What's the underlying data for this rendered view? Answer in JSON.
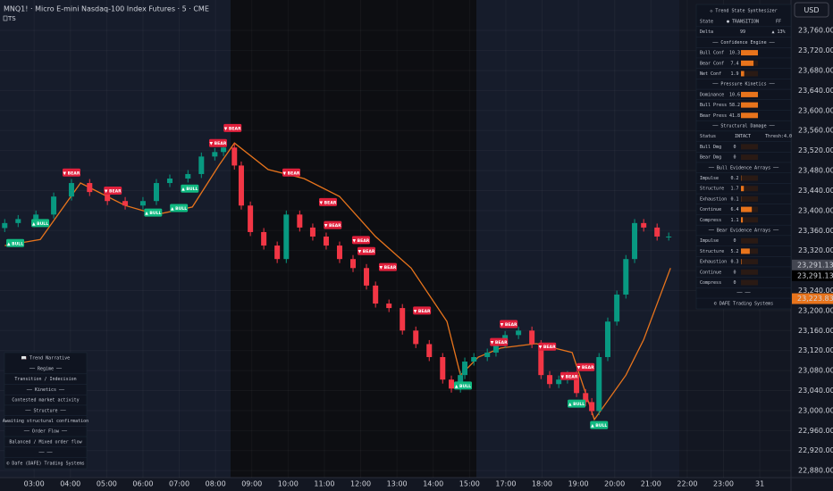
{
  "chart_data": {
    "type": "candlestick",
    "title": "MNQ1! · Micro E-mini Nasdaq-100 Index Futures · 5 · CME",
    "subtitle": "TS",
    "currency": "USD",
    "x": [
      -0.81,
      -0.44,
      0.05,
      0.54,
      1.03,
      1.53,
      2.02,
      2.51,
      3.0,
      3.37,
      3.74,
      4.24,
      4.61,
      4.98,
      5.22,
      5.52,
      5.71,
      5.96,
      6.33,
      6.7,
      6.95,
      7.32,
      7.68,
      8.05,
      8.42,
      8.79,
      9.16,
      9.41,
      9.78,
      10.15,
      10.52,
      10.89,
      11.26,
      11.5,
      11.75,
      11.87,
      12.12,
      12.49,
      12.73,
      12.98,
      13.35,
      13.72,
      13.97,
      14.21,
      14.46,
      14.7,
      14.95,
      15.2,
      15.37,
      15.57,
      15.81,
      16.06,
      16.31,
      16.55,
      16.8,
      17.17,
      17.49
    ],
    "open": [
      23365,
      23375,
      23383,
      23392,
      23428,
      23455,
      23437,
      23419,
      23410,
      23419,
      23455,
      23464,
      23473,
      23508,
      23517,
      23526,
      23490,
      23410,
      23357,
      23330,
      23303,
      23392,
      23366,
      23348,
      23330,
      23303,
      23285,
      23250,
      23214,
      23205,
      23160,
      23133,
      23107,
      23062,
      23044,
      23071,
      23098,
      23107,
      23116,
      23133,
      23151,
      23160,
      23133,
      23071,
      23053,
      23062,
      23071,
      23035,
      23017,
      22999,
      23107,
      23178,
      23232,
      23303,
      23375,
      23366,
      23348
    ],
    "high": [
      23383,
      23391,
      23400,
      23436,
      23463,
      23463,
      23445,
      23427,
      23427,
      23463,
      23472,
      23481,
      23516,
      23525,
      23534,
      23534,
      23498,
      23418,
      23365,
      23338,
      23400,
      23400,
      23374,
      23356,
      23338,
      23311,
      23293,
      23258,
      23222,
      23213,
      23168,
      23141,
      23115,
      23070,
      23079,
      23106,
      23115,
      23124,
      23141,
      23159,
      23168,
      23168,
      23141,
      23079,
      23070,
      23079,
      23079,
      23043,
      23025,
      23115,
      23186,
      23240,
      23311,
      23383,
      23383,
      23374,
      23356
    ],
    "low": [
      23357,
      23367,
      23375,
      23384,
      23420,
      23429,
      23411,
      23402,
      23402,
      23411,
      23447,
      23456,
      23465,
      23500,
      23509,
      23482,
      23402,
      23349,
      23322,
      23295,
      23295,
      23358,
      23340,
      23322,
      23295,
      23277,
      23242,
      23206,
      23197,
      23152,
      23125,
      23099,
      23054,
      23036,
      23036,
      23063,
      23090,
      23099,
      23108,
      23125,
      23143,
      23125,
      23063,
      23045,
      23045,
      23054,
      23027,
      23009,
      22991,
      22991,
      23099,
      23170,
      23224,
      23295,
      23358,
      23340,
      23340
    ],
    "close": [
      23375,
      23383,
      23392,
      23428,
      23455,
      23437,
      23419,
      23410,
      23419,
      23455,
      23464,
      23473,
      23508,
      23517,
      23526,
      23490,
      23410,
      23357,
      23330,
      23303,
      23392,
      23366,
      23348,
      23330,
      23303,
      23285,
      23250,
      23214,
      23205,
      23160,
      23133,
      23107,
      23062,
      23044,
      23071,
      23098,
      23107,
      23116,
      23133,
      23151,
      23160,
      23133,
      23071,
      23053,
      23062,
      23071,
      23035,
      23017,
      22999,
      23107,
      23178,
      23232,
      23303,
      23375,
      23366,
      23348,
      23348
    ],
    "up_color": "#089981",
    "down_color": "#f23645",
    "trail": {
      "color": "#e8741c",
      "x": [
        -0.81,
        0.17,
        1.28,
        2.51,
        3.37,
        4.36,
        5.1,
        5.52,
        6.45,
        7.44,
        8.42,
        9.41,
        10.39,
        11.38,
        11.75,
        12.24,
        12.86,
        13.84,
        14.83,
        15.44,
        16.31,
        16.8,
        17.54
      ],
      "values": [
        23330,
        23342,
        23455,
        23410,
        23392,
        23407,
        23491,
        23535,
        23482,
        23464,
        23428,
        23348,
        23285,
        23178,
        23071,
        23107,
        23125,
        23134,
        23116,
        22982,
        23071,
        23142,
        23285
      ]
    },
    "signals": [
      {
        "label": "▲ BULL",
        "x": -0.52,
        "y": 23335,
        "color": "#10b981"
      },
      {
        "label": "▲ BULL",
        "x": 0.17,
        "y": 23375,
        "color": "#10b981"
      },
      {
        "label": "▼ BEAR",
        "x": 1.03,
        "y": 23476,
        "color": "#e0203c"
      },
      {
        "label": "▼ BEAR",
        "x": 2.17,
        "y": 23440,
        "color": "#e0203c"
      },
      {
        "label": "▲ BULL",
        "x": 3.28,
        "y": 23396,
        "color": "#10b981"
      },
      {
        "label": "▲ BULL",
        "x": 3.99,
        "y": 23405,
        "color": "#10b981"
      },
      {
        "label": "▲ BULL",
        "x": 4.29,
        "y": 23444,
        "color": "#10b981"
      },
      {
        "label": "▼ BEAR",
        "x": 5.07,
        "y": 23535,
        "color": "#e0203c"
      },
      {
        "label": "▼ BEAR",
        "x": 5.47,
        "y": 23565,
        "color": "#e0203c"
      },
      {
        "label": "▼ BEAR",
        "x": 7.09,
        "y": 23476,
        "color": "#e0203c"
      },
      {
        "label": "▼ BEAR",
        "x": 8.1,
        "y": 23417,
        "color": "#e0203c"
      },
      {
        "label": "▼ BEAR",
        "x": 8.23,
        "y": 23371,
        "color": "#e0203c"
      },
      {
        "label": "▼ BEAR",
        "x": 9.01,
        "y": 23341,
        "color": "#e0203c"
      },
      {
        "label": "▼ BEAR",
        "x": 9.16,
        "y": 23319,
        "color": "#e0203c"
      },
      {
        "label": "▼ BEAR",
        "x": 9.75,
        "y": 23287,
        "color": "#e0203c"
      },
      {
        "label": "▼ BEAR",
        "x": 10.69,
        "y": 23200,
        "color": "#e0203c"
      },
      {
        "label": "▲ BULL",
        "x": 11.82,
        "y": 23050,
        "color": "#10b981"
      },
      {
        "label": "▼ BEAR",
        "x": 12.81,
        "y": 23137,
        "color": "#e0203c"
      },
      {
        "label": "▼ BEAR",
        "x": 13.08,
        "y": 23173,
        "color": "#e0203c"
      },
      {
        "label": "▼ BEAR",
        "x": 14.14,
        "y": 23128,
        "color": "#e0203c"
      },
      {
        "label": "▼ BEAR",
        "x": 14.75,
        "y": 23069,
        "color": "#e0203c"
      },
      {
        "label": "▼ BEAR",
        "x": 15.2,
        "y": 23087,
        "color": "#e0203c"
      },
      {
        "label": "▲ BULL",
        "x": 14.95,
        "y": 23014,
        "color": "#10b981"
      },
      {
        "label": "▲ BULL",
        "x": 15.57,
        "y": 22971,
        "color": "#10b981"
      }
    ],
    "price_labels": [
      {
        "value": 23291.13,
        "label": "23,291.13",
        "color": "#434651"
      },
      {
        "value": 23291.13,
        "label": "23,291.13",
        "color": "#000000"
      },
      {
        "value": 23223.83,
        "label": "23,223.83",
        "color": "#e8741c"
      }
    ],
    "xlim": [
      -0.94,
      20.86
    ],
    "xticks": [
      {
        "value": 0,
        "label": "03:00"
      },
      {
        "value": 1,
        "label": "04:00"
      },
      {
        "value": 2,
        "label": "05:00"
      },
      {
        "value": 3,
        "label": "06:00"
      },
      {
        "value": 4,
        "label": "07:00"
      },
      {
        "value": 5,
        "label": "08:00"
      },
      {
        "value": 6,
        "label": "09:00"
      },
      {
        "value": 7,
        "label": "10:00"
      },
      {
        "value": 8,
        "label": "11:00"
      },
      {
        "value": 9,
        "label": "12:00"
      },
      {
        "value": 10,
        "label": "13:00"
      },
      {
        "value": 11,
        "label": "14:00"
      },
      {
        "value": 12,
        "label": "15:00"
      },
      {
        "value": 13,
        "label": "17:00"
      },
      {
        "value": 14,
        "label": "18:00"
      },
      {
        "value": 15,
        "label": "19:00"
      },
      {
        "value": 16,
        "label": "20:00"
      },
      {
        "value": 17,
        "label": "21:00"
      },
      {
        "value": 18,
        "label": "22:00"
      },
      {
        "value": 19,
        "label": "23:00"
      },
      {
        "value": 20,
        "label": "31"
      }
    ],
    "ylim": [
      22866,
      23821
    ],
    "yticks": [
      {
        "value": 22880,
        "label": "22,880.00"
      },
      {
        "value": 22920,
        "label": "22,920.00"
      },
      {
        "value": 22960,
        "label": "22,960.00"
      },
      {
        "value": 23000,
        "label": "23,000.00"
      },
      {
        "value": 23040,
        "label": "23,040.00"
      },
      {
        "value": 23080,
        "label": "23,080.00"
      },
      {
        "value": 23120,
        "label": "23,120.00"
      },
      {
        "value": 23160,
        "label": "23,160.00"
      },
      {
        "value": 23200,
        "label": "23,200.00"
      },
      {
        "value": 23240,
        "label": "23,240.00"
      },
      {
        "value": 23280,
        "label": "23,280.00"
      },
      {
        "value": 23320,
        "label": "23,320.00"
      },
      {
        "value": 23360,
        "label": "23,360.00"
      },
      {
        "value": 23400,
        "label": "23,400.00"
      },
      {
        "value": 23440,
        "label": "23,440.00"
      },
      {
        "value": 23480,
        "label": "23,480.00"
      },
      {
        "value": 23520,
        "label": "23,520.00"
      },
      {
        "value": 23560,
        "label": "23,560.00"
      },
      {
        "value": 23600,
        "label": "23,600.00"
      },
      {
        "value": 23640,
        "label": "23,640.00"
      },
      {
        "value": 23680,
        "label": "23,680.00"
      },
      {
        "value": 23720,
        "label": "23,720.00"
      },
      {
        "value": 23760,
        "label": "23,760.00"
      }
    ],
    "grid": true
  },
  "state_panel": {
    "title": "◇ Trend State Synthesizer",
    "rows": [
      {
        "cells": [
          "State",
          "● TRANSITION",
          "FF"
        ]
      },
      {
        "cells": [
          "Delta",
          "99",
          "▲ 13%"
        ]
      },
      {
        "section": "── Confidence Engine ──"
      },
      {
        "label": "Bull Conf",
        "value": 10.3
      },
      {
        "label": "Bear Conf",
        "value": 7.4
      },
      {
        "label": "Net Conf",
        "value": 1.9
      },
      {
        "section": "── Pressure Kinetics ──"
      },
      {
        "label": "Dominance",
        "value": 10.6
      },
      {
        "label": "Bull Press",
        "value": 58.2
      },
      {
        "label": "Bear Press",
        "value": 41.8
      },
      {
        "section": "── Structural Damage ──"
      },
      {
        "cells": [
          "Status",
          "INTACT",
          "Thresh:4.0"
        ]
      },
      {
        "label": "Bull Dmg",
        "value": 0
      },
      {
        "label": "Bear Dmg",
        "value": 0
      },
      {
        "section": "── Bull Evidence Arrays ──"
      },
      {
        "label": "Impulse",
        "value": 0.2
      },
      {
        "label": "Structure",
        "value": 1.7
      },
      {
        "label": "Exhaustion",
        "value": 0.1
      },
      {
        "label": "Continue",
        "value": 6.4
      },
      {
        "label": "Compress",
        "value": 1.1
      },
      {
        "section": "── Bear Evidence Arrays ──"
      },
      {
        "label": "Impulse",
        "value": 0
      },
      {
        "label": "Structure",
        "value": 5.2
      },
      {
        "label": "Exhaustion",
        "value": 0.3
      },
      {
        "label": "Continue",
        "value": 0
      },
      {
        "label": "Compress",
        "value": 0
      },
      {
        "section": "── ──"
      }
    ],
    "footer": "© DAFE Trading Systems"
  },
  "narrative_panel": {
    "title": "📖 Trend Narrative",
    "rows": [
      {
        "section": "── Regime ──"
      },
      {
        "text": "Transition / Indecision"
      },
      {
        "section": "── Kinetics ──"
      },
      {
        "text": "Contested market activity"
      },
      {
        "section": "── Structure ──"
      },
      {
        "text": "Awaiting structural confirmation"
      },
      {
        "section": "── Order Flow ──"
      },
      {
        "text": "Balanced / Mixed order flow"
      },
      {
        "section": "── ──"
      }
    ],
    "footer": "© Dafe (DAFE) Trading Systems"
  }
}
